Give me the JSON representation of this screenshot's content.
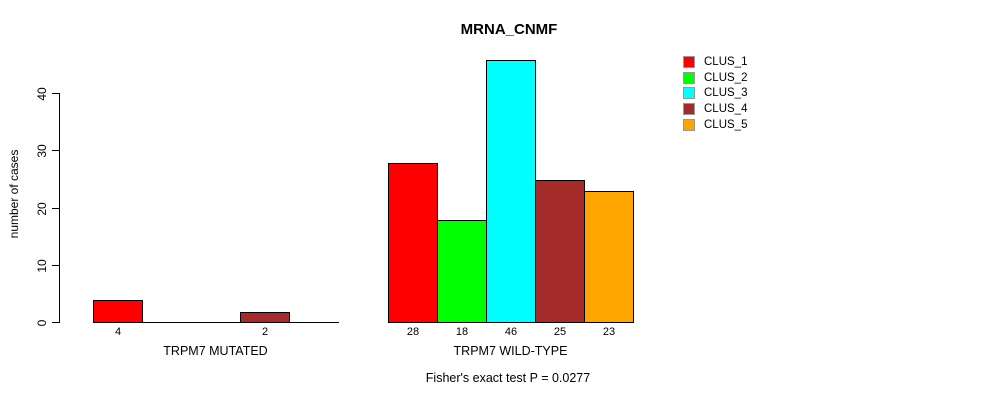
{
  "chart_data": {
    "type": "bar",
    "title": "MRNA_CNMF",
    "ylabel": "number of cases",
    "yticks": [
      0,
      10,
      20,
      30,
      40
    ],
    "ylim": [
      0,
      46
    ],
    "grid": false,
    "legend_position": "right-top-outside",
    "series": [
      {
        "name": "CLUS_1",
        "color": "#FF0000"
      },
      {
        "name": "CLUS_2",
        "color": "#00FF00"
      },
      {
        "name": "CLUS_3",
        "color": "#00FFFF"
      },
      {
        "name": "CLUS_4",
        "color": "#A52A2A"
      },
      {
        "name": "CLUS_5",
        "color": "#FFA500"
      }
    ],
    "groups": [
      {
        "label": "TRPM7 MUTATED",
        "values": [
          4,
          0,
          0,
          2,
          0
        ]
      },
      {
        "label": "TRPM7 WILD-TYPE",
        "values": [
          28,
          18,
          46,
          25,
          23
        ]
      }
    ],
    "annotation": "Fisher's exact test P = 0.0277"
  }
}
